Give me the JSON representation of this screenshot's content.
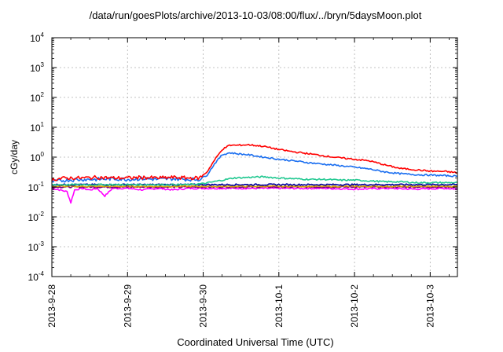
{
  "chart_data": {
    "type": "line",
    "title": "/data/run/goesPlots/archive/2013-10-03/08:00/flux/../bryn/5daysMoon.plot",
    "xlabel": "Coordinated Universal Time (UTC)",
    "ylabel": "cGy/day",
    "yscale": "log",
    "ylim": [
      0.0001,
      10000
    ],
    "xlim": [
      0,
      5.36
    ],
    "y_ticks": [
      {
        "value": 0.0001,
        "base": "10",
        "exp": "-4"
      },
      {
        "value": 0.001,
        "base": "10",
        "exp": "-3"
      },
      {
        "value": 0.01,
        "base": "10",
        "exp": "-2"
      },
      {
        "value": 0.1,
        "base": "10",
        "exp": "-1"
      },
      {
        "value": 1,
        "base": "10",
        "exp": "0"
      },
      {
        "value": 10,
        "base": "10",
        "exp": "1"
      },
      {
        "value": 100,
        "base": "10",
        "exp": "2"
      },
      {
        "value": 1000,
        "base": "10",
        "exp": "3"
      },
      {
        "value": 10000,
        "base": "10",
        "exp": "4"
      }
    ],
    "x_ticks": [
      {
        "value": 0,
        "label": "2013-9-28"
      },
      {
        "value": 1,
        "label": "2013-9-29"
      },
      {
        "value": 2,
        "label": "2013-9-30"
      },
      {
        "value": 3,
        "label": "2013-10-1"
      },
      {
        "value": 4,
        "label": "2013-10-2"
      },
      {
        "value": 5,
        "label": "2013-10-3"
      }
    ],
    "grid": true,
    "legend": "none",
    "series": [
      {
        "color": "#ff0000",
        "x": [
          0,
          0.2,
          0.4,
          0.6,
          0.8,
          1.0,
          1.2,
          1.4,
          1.6,
          1.8,
          1.95,
          2.05,
          2.15,
          2.25,
          2.35,
          2.45,
          2.6,
          2.8,
          3.0,
          3.2,
          3.4,
          3.6,
          3.8,
          4.0,
          4.2,
          4.4,
          4.6,
          4.8,
          5.0,
          5.2,
          5.36
        ],
        "y": [
          0.18,
          0.2,
          0.2,
          0.21,
          0.2,
          0.2,
          0.21,
          0.2,
          0.21,
          0.2,
          0.2,
          0.32,
          0.8,
          1.8,
          2.5,
          2.5,
          2.6,
          2.3,
          1.8,
          1.5,
          1.3,
          1.1,
          0.95,
          0.85,
          0.75,
          0.55,
          0.42,
          0.38,
          0.34,
          0.33,
          0.3
        ]
      },
      {
        "color": "#1a6ef0",
        "x": [
          0,
          0.2,
          0.4,
          0.6,
          0.8,
          1.0,
          1.2,
          1.4,
          1.6,
          1.8,
          1.95,
          2.05,
          2.15,
          2.25,
          2.35,
          2.45,
          2.6,
          2.8,
          3.0,
          3.2,
          3.4,
          3.6,
          3.8,
          4.0,
          4.2,
          4.4,
          4.6,
          4.8,
          5.0,
          5.2,
          5.36
        ],
        "y": [
          0.15,
          0.17,
          0.18,
          0.18,
          0.19,
          0.18,
          0.19,
          0.18,
          0.19,
          0.18,
          0.18,
          0.25,
          0.6,
          1.2,
          1.4,
          1.3,
          1.2,
          1.0,
          0.85,
          0.75,
          0.65,
          0.58,
          0.52,
          0.46,
          0.4,
          0.32,
          0.28,
          0.26,
          0.25,
          0.24,
          0.23
        ]
      },
      {
        "color": "#20c890",
        "x": [
          0,
          0.2,
          0.4,
          0.6,
          0.8,
          1.0,
          1.2,
          1.4,
          1.6,
          1.8,
          2.0,
          2.2,
          2.4,
          2.6,
          2.8,
          3.0,
          3.2,
          3.4,
          3.6,
          3.8,
          4.0,
          4.2,
          4.4,
          4.6,
          4.8,
          5.0,
          5.2,
          5.36
        ],
        "y": [
          0.12,
          0.12,
          0.12,
          0.12,
          0.12,
          0.12,
          0.12,
          0.12,
          0.12,
          0.12,
          0.13,
          0.16,
          0.2,
          0.21,
          0.22,
          0.2,
          0.19,
          0.18,
          0.18,
          0.17,
          0.17,
          0.16,
          0.15,
          0.15,
          0.14,
          0.14,
          0.14,
          0.14
        ]
      },
      {
        "color": "#0000a0",
        "x": [
          0,
          0.4,
          0.8,
          1.2,
          1.6,
          2.0,
          2.4,
          2.8,
          3.2,
          3.6,
          4.0,
          4.4,
          4.8,
          5.2,
          5.36
        ],
        "y": [
          0.12,
          0.12,
          0.12,
          0.12,
          0.12,
          0.12,
          0.12,
          0.12,
          0.12,
          0.12,
          0.12,
          0.12,
          0.12,
          0.12,
          0.12
        ]
      },
      {
        "color": "#d8a000",
        "x": [
          0,
          0.4,
          0.8,
          1.2,
          1.6,
          2.0,
          2.4,
          2.8,
          3.2,
          3.6,
          4.0,
          4.4,
          4.8,
          5.2,
          5.36
        ],
        "y": [
          0.105,
          0.105,
          0.105,
          0.105,
          0.105,
          0.105,
          0.105,
          0.105,
          0.105,
          0.105,
          0.105,
          0.105,
          0.105,
          0.105,
          0.105
        ]
      },
      {
        "color": "#800080",
        "x": [
          0,
          0.4,
          0.8,
          1.2,
          1.6,
          2.0,
          2.4,
          2.8,
          3.2,
          3.6,
          4.0,
          4.4,
          4.8,
          5.2,
          5.36
        ],
        "y": [
          0.1,
          0.1,
          0.1,
          0.1,
          0.1,
          0.1,
          0.1,
          0.1,
          0.1,
          0.1,
          0.1,
          0.1,
          0.1,
          0.1,
          0.1
        ]
      },
      {
        "color": "#ff00ff",
        "x": [
          0,
          0.1,
          0.2,
          0.25,
          0.3,
          0.4,
          0.5,
          0.6,
          0.7,
          0.8,
          1.0,
          1.2,
          1.4,
          1.6,
          1.8,
          2.0,
          2.4,
          2.8,
          3.2,
          3.6,
          4.0,
          4.4,
          4.8,
          5.2,
          5.36
        ],
        "y": [
          0.09,
          0.08,
          0.07,
          0.03,
          0.08,
          0.09,
          0.08,
          0.09,
          0.05,
          0.09,
          0.09,
          0.08,
          0.09,
          0.08,
          0.09,
          0.09,
          0.09,
          0.09,
          0.09,
          0.09,
          0.085,
          0.09,
          0.085,
          0.09,
          0.085
        ]
      }
    ]
  }
}
